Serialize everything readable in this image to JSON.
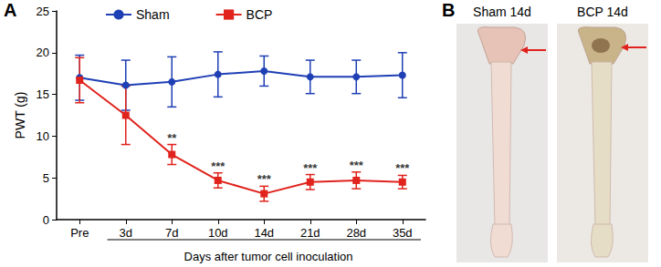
{
  "chart_data": {
    "type": "line",
    "panel_label": "A",
    "y_label": "PWT (g)",
    "x_label": "Days after tumor cell inoculation",
    "categories": [
      "Pre",
      "3d",
      "7d",
      "10d",
      "14d",
      "21d",
      "28d",
      "35d"
    ],
    "ylim": [
      0,
      25
    ],
    "yticks": [
      0,
      5,
      10,
      15,
      20,
      25
    ],
    "grid": false,
    "legend": "top",
    "series": [
      {
        "name": "Sham",
        "color": "#1f3fb5",
        "marker": "circle",
        "values": [
          17.0,
          16.1,
          16.5,
          17.4,
          17.8,
          17.1,
          17.1,
          17.3
        ],
        "errors": [
          2.7,
          3.0,
          3.0,
          2.7,
          1.8,
          2.0,
          2.0,
          2.7
        ]
      },
      {
        "name": "BCP",
        "color": "#e0231c",
        "marker": "square",
        "values": [
          16.7,
          12.5,
          7.8,
          4.7,
          3.1,
          4.5,
          4.7,
          4.5
        ],
        "errors": [
          2.7,
          3.5,
          1.2,
          0.9,
          0.9,
          0.9,
          1.0,
          0.8
        ],
        "annotations": [
          null,
          null,
          "**",
          "***",
          "***",
          "***",
          "***",
          "***"
        ]
      }
    ]
  },
  "panel_b": {
    "label": "B",
    "images": [
      {
        "caption": "Sham 14d"
      },
      {
        "caption": "BCP 14d"
      }
    ]
  }
}
